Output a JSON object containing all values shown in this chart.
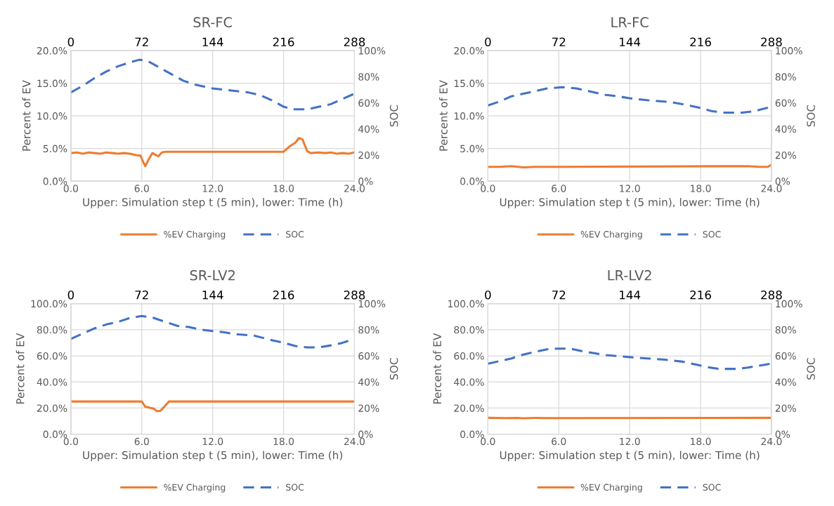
{
  "chart_data": [
    {
      "type": "line",
      "title": "SR-FC",
      "xlabel": "Upper: Simulation step t (5 min), lower: Time (h)",
      "ylabel": "Percent of EV",
      "y2label": "SOC",
      "xlim": [
        0,
        24
      ],
      "xticks": [
        {
          "value": 0,
          "label": "0.0"
        },
        {
          "value": 6,
          "label": "6.0"
        },
        {
          "value": 12,
          "label": "12.0"
        },
        {
          "value": 18,
          "label": "18.0"
        },
        {
          "value": 24,
          "label": "24.0"
        }
      ],
      "x2lim": [
        0,
        288
      ],
      "x2ticks": [
        0,
        72,
        144,
        216,
        288
      ],
      "ylim": [
        0,
        20
      ],
      "yticks": [
        {
          "value": 0,
          "label": "0.0%"
        },
        {
          "value": 5,
          "label": "5.0%"
        },
        {
          "value": 10,
          "label": "10.0%"
        },
        {
          "value": 15,
          "label": "15.0%"
        },
        {
          "value": 20,
          "label": "20.0%"
        }
      ],
      "y2lim": [
        0,
        100
      ],
      "y2ticks": [
        {
          "value": 0,
          "label": "0%"
        },
        {
          "value": 20,
          "label": "20%"
        },
        {
          "value": 40,
          "label": "40%"
        },
        {
          "value": 60,
          "label": "60%"
        },
        {
          "value": 80,
          "label": "80%"
        },
        {
          "value": 100,
          "label": "100%"
        }
      ],
      "grid": true,
      "legend": "bottom",
      "series": [
        {
          "name": "%EV Charging",
          "color": "#ed7d31",
          "line_style": "solid",
          "x": [
            0,
            0.5,
            1,
            1.5,
            2,
            2.5,
            3,
            3.5,
            4,
            4.5,
            5,
            5.5,
            5.9,
            6.1,
            6.3,
            6.6,
            6.9,
            7.2,
            7.4,
            7.7,
            8,
            18,
            18.5,
            19,
            19.3,
            19.6,
            20,
            20.3,
            21,
            21.5,
            22,
            22.5,
            23,
            23.5,
            24
          ],
          "values": [
            4.3,
            4.4,
            4.2,
            4.4,
            4.3,
            4.2,
            4.4,
            4.3,
            4.2,
            4.3,
            4.2,
            4.0,
            3.9,
            3.0,
            2.3,
            3.4,
            4.3,
            4.0,
            3.8,
            4.4,
            4.5,
            4.5,
            5.3,
            5.9,
            6.6,
            6.4,
            4.6,
            4.3,
            4.4,
            4.3,
            4.4,
            4.2,
            4.3,
            4.2,
            4.4
          ]
        },
        {
          "name": "SOC",
          "color": "#4472c4",
          "line_style": "dashed",
          "axis": "y2",
          "x": [
            0,
            1,
            2,
            3,
            4,
            5,
            5.8,
            6.5,
            7.5,
            8.5,
            9.5,
            10.5,
            12,
            13,
            14,
            15,
            16,
            17,
            18,
            18.8,
            20,
            21,
            22,
            23,
            24
          ],
          "values": [
            68,
            73,
            79,
            84,
            88,
            91,
            93,
            92,
            87,
            82,
            77,
            74,
            71,
            70,
            69,
            68,
            66,
            62,
            57,
            55,
            55,
            57,
            59,
            63,
            67
          ]
        }
      ]
    },
    {
      "type": "line",
      "title": "LR-FC",
      "xlabel": "Upper: Simulation step t (5 min), lower: Time (h)",
      "ylabel": "Percent of EV",
      "y2label": "SOC",
      "xlim": [
        0,
        24
      ],
      "xticks": [
        {
          "value": 0,
          "label": "0.0"
        },
        {
          "value": 6,
          "label": "6.0"
        },
        {
          "value": 12,
          "label": "12.0"
        },
        {
          "value": 18,
          "label": "18.0"
        },
        {
          "value": 24,
          "label": "24.0"
        }
      ],
      "x2lim": [
        0,
        288
      ],
      "x2ticks": [
        0,
        72,
        144,
        216,
        288
      ],
      "ylim": [
        0,
        20
      ],
      "yticks": [
        {
          "value": 0,
          "label": "0.0%"
        },
        {
          "value": 5,
          "label": "5.0%"
        },
        {
          "value": 10,
          "label": "10.0%"
        },
        {
          "value": 15,
          "label": "15.0%"
        },
        {
          "value": 20,
          "label": "20.0%"
        }
      ],
      "y2lim": [
        0,
        100
      ],
      "y2ticks": [
        {
          "value": 0,
          "label": "0%"
        },
        {
          "value": 20,
          "label": "20%"
        },
        {
          "value": 40,
          "label": "40%"
        },
        {
          "value": 60,
          "label": "60%"
        },
        {
          "value": 80,
          "label": "80%"
        },
        {
          "value": 100,
          "label": "100%"
        }
      ],
      "grid": true,
      "legend": "bottom",
      "series": [
        {
          "name": "%EV Charging",
          "color": "#ed7d31",
          "line_style": "solid",
          "x": [
            0,
            1,
            2,
            3,
            4,
            5,
            6,
            22,
            23,
            23.7,
            24
          ],
          "values": [
            2.2,
            2.2,
            2.3,
            2.1,
            2.2,
            2.2,
            2.2,
            2.3,
            2.2,
            2.2,
            2.5
          ]
        },
        {
          "name": "SOC",
          "color": "#4472c4",
          "line_style": "dashed",
          "axis": "y2",
          "x": [
            0,
            1,
            2,
            3,
            4,
            5,
            6.3,
            7.5,
            8.5,
            10,
            11,
            12,
            13.5,
            15.5,
            17,
            18,
            19,
            20,
            21.5,
            22.5,
            24
          ],
          "values": [
            58,
            61,
            65,
            67,
            69,
            71,
            72,
            71,
            69,
            66,
            65,
            63.5,
            62,
            60.5,
            58,
            56,
            53.5,
            52.5,
            52.5,
            53.5,
            57
          ]
        }
      ]
    },
    {
      "type": "line",
      "title": "SR-LV2",
      "xlabel": "Upper: Simulation step t (5 min), lower: Time (h)",
      "ylabel": "Percent of EV",
      "y2label": "SOC",
      "xlim": [
        0,
        24
      ],
      "xticks": [
        {
          "value": 0,
          "label": "0.0"
        },
        {
          "value": 6,
          "label": "6.0"
        },
        {
          "value": 12,
          "label": "12.0"
        },
        {
          "value": 18,
          "label": "18.0"
        },
        {
          "value": 24,
          "label": "24.0"
        }
      ],
      "x2lim": [
        0,
        288
      ],
      "x2ticks": [
        0,
        72,
        144,
        216,
        288
      ],
      "ylim": [
        0,
        100
      ],
      "yticks": [
        {
          "value": 0,
          "label": "0.0%"
        },
        {
          "value": 20,
          "label": "20.0%"
        },
        {
          "value": 40,
          "label": "40.0%"
        },
        {
          "value": 60,
          "label": "60.0%"
        },
        {
          "value": 80,
          "label": "80.0%"
        },
        {
          "value": 100,
          "label": "100.0%"
        }
      ],
      "y2lim": [
        0,
        100
      ],
      "y2ticks": [
        {
          "value": 0,
          "label": "0%"
        },
        {
          "value": 20,
          "label": "20%"
        },
        {
          "value": 40,
          "label": "40%"
        },
        {
          "value": 60,
          "label": "60%"
        },
        {
          "value": 80,
          "label": "80%"
        },
        {
          "value": 100,
          "label": "100%"
        }
      ],
      "grid": true,
      "legend": "bottom",
      "series": [
        {
          "name": "%EV Charging",
          "color": "#ed7d31",
          "line_style": "solid",
          "x": [
            0,
            6,
            6.3,
            6.8,
            7.0,
            7.3,
            7.6,
            8,
            8.3,
            24
          ],
          "values": [
            25,
            25,
            21,
            20,
            19.5,
            17.5,
            18,
            22,
            25,
            25
          ]
        },
        {
          "name": "SOC",
          "color": "#4472c4",
          "line_style": "dashed",
          "axis": "y2",
          "x": [
            0,
            1,
            2,
            3,
            4,
            5,
            6,
            7,
            8,
            9,
            10,
            11,
            12,
            13,
            14,
            15.5,
            17,
            18,
            19,
            20,
            21,
            22,
            23,
            24
          ],
          "values": [
            73,
            77,
            81,
            84,
            86,
            89,
            90.5,
            89,
            86,
            83,
            82,
            80,
            79,
            78,
            76.5,
            75.5,
            72,
            70,
            67.5,
            66.5,
            66.5,
            68,
            70,
            73
          ]
        }
      ]
    },
    {
      "type": "line",
      "title": "LR-LV2",
      "xlabel": "Upper: Simulation step t (5 min), lower: Time (h)",
      "ylabel": "Percent of EV",
      "y2label": "SOC",
      "xlim": [
        0,
        24
      ],
      "xticks": [
        {
          "value": 0,
          "label": "0.0"
        },
        {
          "value": 6,
          "label": "6.0"
        },
        {
          "value": 12,
          "label": "12.0"
        },
        {
          "value": 18,
          "label": "18.0"
        },
        {
          "value": 24,
          "label": "24.0"
        }
      ],
      "x2lim": [
        0,
        288
      ],
      "x2ticks": [
        0,
        72,
        144,
        216,
        288
      ],
      "ylim": [
        0,
        100
      ],
      "yticks": [
        {
          "value": 0,
          "label": "0.0%"
        },
        {
          "value": 20,
          "label": "20.0%"
        },
        {
          "value": 40,
          "label": "40.0%"
        },
        {
          "value": 60,
          "label": "60.0%"
        },
        {
          "value": 80,
          "label": "80.0%"
        },
        {
          "value": 100,
          "label": "100.0%"
        }
      ],
      "y2lim": [
        0,
        100
      ],
      "y2ticks": [
        {
          "value": 0,
          "label": "0%"
        },
        {
          "value": 20,
          "label": "20%"
        },
        {
          "value": 40,
          "label": "40%"
        },
        {
          "value": 60,
          "label": "60%"
        },
        {
          "value": 80,
          "label": "80%"
        },
        {
          "value": 100,
          "label": "100%"
        }
      ],
      "grid": true,
      "legend": "bottom",
      "series": [
        {
          "name": "%EV Charging",
          "color": "#ed7d31",
          "line_style": "solid",
          "x": [
            0,
            1.5,
            2.5,
            3,
            4,
            5,
            6,
            24
          ],
          "values": [
            12.5,
            12.3,
            12.4,
            12.2,
            12.4,
            12.3,
            12.3,
            12.5
          ]
        },
        {
          "name": "SOC",
          "color": "#4472c4",
          "line_style": "dashed",
          "axis": "y2",
          "x": [
            0,
            1,
            2,
            3,
            4,
            5,
            6,
            7,
            8,
            9,
            10,
            12,
            13.5,
            15,
            16.5,
            17.5,
            18.5,
            19.5,
            21,
            22,
            23,
            24
          ],
          "values": [
            54,
            56,
            58,
            61,
            63,
            65,
            65.5,
            65.5,
            63.5,
            62,
            60.5,
            59,
            58,
            57,
            55.5,
            53.5,
            51.5,
            50,
            50,
            51,
            52.5,
            54
          ]
        }
      ]
    }
  ]
}
